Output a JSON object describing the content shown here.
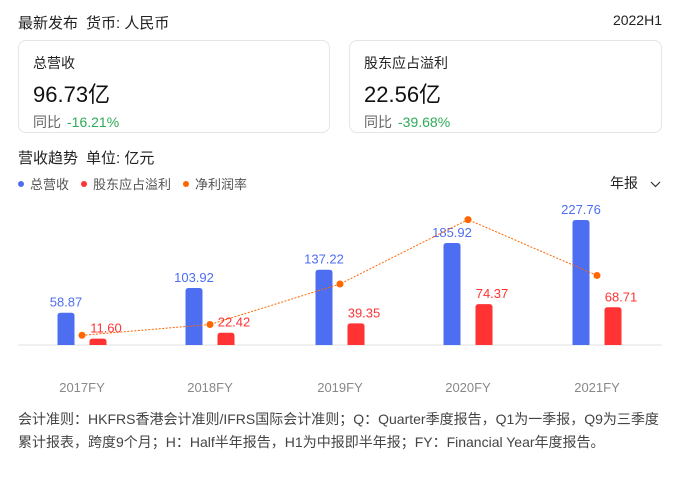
{
  "header": {
    "title": "最新发布",
    "currency": "货币: 人民币",
    "period": "2022H1"
  },
  "cards": [
    {
      "label": "总营收",
      "value": "96.73亿",
      "yoy_label": "同比",
      "yoy": "-16.21%"
    },
    {
      "label": "股东应占溢利",
      "value": "22.56亿",
      "yoy_label": "同比",
      "yoy": "-39.68%"
    }
  ],
  "trend": {
    "title": "营收趋势",
    "unit": "单位: 亿元",
    "period_select": "年报"
  },
  "colors": {
    "revenue": "#4e6ef2",
    "profit": "#ff3333",
    "margin": "#ff6600",
    "positive": "#2daa57"
  },
  "chart_data": {
    "type": "bar",
    "categories": [
      "2017FY",
      "2018FY",
      "2019FY",
      "2020FY",
      "2021FY"
    ],
    "series": [
      {
        "name": "总营收",
        "type": "bar",
        "values": [
          58.87,
          103.92,
          137.22,
          185.92,
          227.76
        ],
        "labels": [
          "58.87",
          "103.92",
          "137.22",
          "185.92",
          "227.76"
        ]
      },
      {
        "name": "股东应占溢利",
        "type": "bar",
        "values": [
          11.6,
          22.42,
          39.35,
          74.37,
          68.71
        ],
        "labels": [
          "11.60",
          "22.42",
          "39.35",
          "74.37",
          "68.71"
        ]
      },
      {
        "name": "净利润率",
        "type": "line",
        "values": [
          19.7,
          21.6,
          28.7,
          40.0,
          30.2
        ]
      }
    ],
    "ylim": [
      0,
      230
    ],
    "legend": "top-left"
  },
  "footer": "会计准则：HKFRS香港会计准则/IFRS国际会计准则；Q：Quarter季度报告，Q1为一季报，Q9为三季度累计报表，跨度9个月；H：Half半年报告，H1为中报即半年报；FY：Financial Year年度报告。"
}
